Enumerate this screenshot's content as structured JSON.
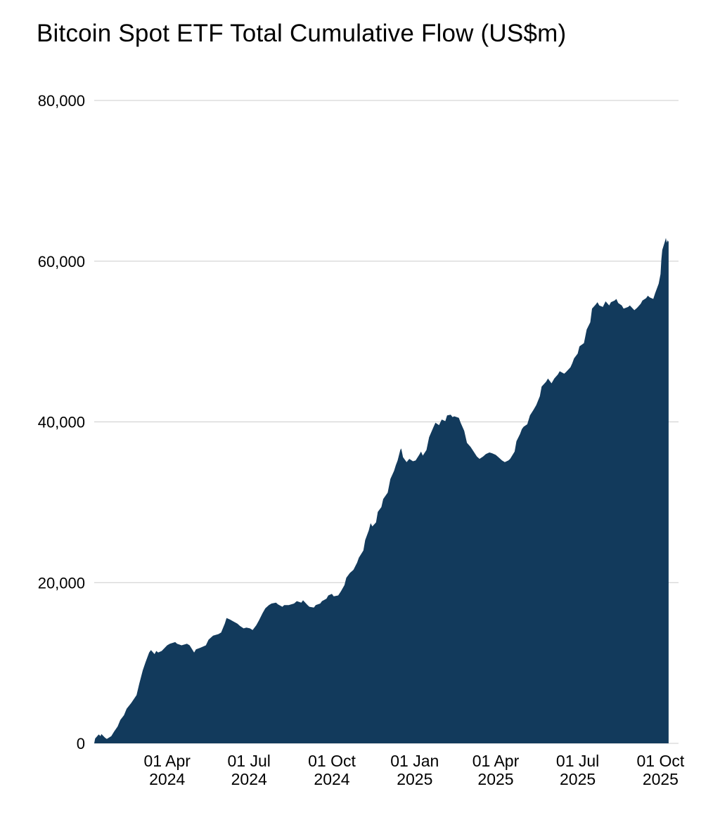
{
  "title": "Bitcoin Spot ETF Total Cumulative Flow (US$m)",
  "colors": {
    "background": "#ffffff",
    "area": "#123A5C",
    "grid": "#cccccc",
    "text": "#000000"
  },
  "chart_data": {
    "type": "area",
    "title": "Bitcoin Spot ETF Total Cumulative Flow (US$m)",
    "xlabel": "",
    "ylabel": "",
    "ylim": [
      0,
      80000
    ],
    "x_domain": [
      "2024-01-11",
      "2025-10-14"
    ],
    "grid": true,
    "legend": false,
    "area_color": "#123A5C",
    "grid_color": "#cccccc",
    "text_color": "#000000",
    "yticks": [
      {
        "value": 0,
        "label": "0"
      },
      {
        "value": 20000,
        "label": "20,000"
      },
      {
        "value": 40000,
        "label": "40,000"
      },
      {
        "value": 60000,
        "label": "60,000"
      },
      {
        "value": 80000,
        "label": "80,000"
      }
    ],
    "xticks": [
      {
        "date": "2024-04-01",
        "label": [
          "01 Apr",
          "2024"
        ]
      },
      {
        "date": "2024-07-01",
        "label": [
          "01 Jul",
          "2024"
        ]
      },
      {
        "date": "2024-10-01",
        "label": [
          "01 Oct",
          "2024"
        ]
      },
      {
        "date": "2025-01-01",
        "label": [
          "01 Jan",
          "2025"
        ]
      },
      {
        "date": "2025-04-01",
        "label": [
          "01 Apr",
          "2025"
        ]
      },
      {
        "date": "2025-07-01",
        "label": [
          "01 Jul",
          "2025"
        ]
      },
      {
        "date": "2025-10-01",
        "label": [
          "01 Oct",
          "2025"
        ]
      }
    ],
    "series": [
      {
        "name": "Total Cumulative Flow (US$m)",
        "points": [
          [
            "2024-01-11",
            0
          ],
          [
            "2024-01-12",
            600
          ],
          [
            "2024-01-16",
            1100
          ],
          [
            "2024-01-18",
            900
          ],
          [
            "2024-01-19",
            1150
          ],
          [
            "2024-01-23",
            700
          ],
          [
            "2024-01-25",
            550
          ],
          [
            "2024-01-30",
            900
          ],
          [
            "2024-02-02",
            1450
          ],
          [
            "2024-02-06",
            2100
          ],
          [
            "2024-02-09",
            2900
          ],
          [
            "2024-02-13",
            3500
          ],
          [
            "2024-02-16",
            4300
          ],
          [
            "2024-02-21",
            5000
          ],
          [
            "2024-02-27",
            6000
          ],
          [
            "2024-03-01",
            7400
          ],
          [
            "2024-03-05",
            9100
          ],
          [
            "2024-03-08",
            10100
          ],
          [
            "2024-03-12",
            11300
          ],
          [
            "2024-03-14",
            11600
          ],
          [
            "2024-03-18",
            11100
          ],
          [
            "2024-03-20",
            11500
          ],
          [
            "2024-03-22",
            11300
          ],
          [
            "2024-03-26",
            11500
          ],
          [
            "2024-04-01",
            12200
          ],
          [
            "2024-04-04",
            12400
          ],
          [
            "2024-04-10",
            12600
          ],
          [
            "2024-04-12",
            12400
          ],
          [
            "2024-04-17",
            12200
          ],
          [
            "2024-04-23",
            12400
          ],
          [
            "2024-04-26",
            12200
          ],
          [
            "2024-05-01",
            11300
          ],
          [
            "2024-05-03",
            11700
          ],
          [
            "2024-05-08",
            11900
          ],
          [
            "2024-05-14",
            12200
          ],
          [
            "2024-05-17",
            12900
          ],
          [
            "2024-05-22",
            13400
          ],
          [
            "2024-05-28",
            13600
          ],
          [
            "2024-05-31",
            13800
          ],
          [
            "2024-06-04",
            14900
          ],
          [
            "2024-06-06",
            15600
          ],
          [
            "2024-06-10",
            15400
          ],
          [
            "2024-06-13",
            15200
          ],
          [
            "2024-06-18",
            14900
          ],
          [
            "2024-06-21",
            14600
          ],
          [
            "2024-06-25",
            14300
          ],
          [
            "2024-06-28",
            14400
          ],
          [
            "2024-07-02",
            14300
          ],
          [
            "2024-07-05",
            14100
          ],
          [
            "2024-07-09",
            14700
          ],
          [
            "2024-07-12",
            15300
          ],
          [
            "2024-07-16",
            16200
          ],
          [
            "2024-07-19",
            16800
          ],
          [
            "2024-07-23",
            17200
          ],
          [
            "2024-07-26",
            17400
          ],
          [
            "2024-07-31",
            17500
          ],
          [
            "2024-08-02",
            17300
          ],
          [
            "2024-08-07",
            17000
          ],
          [
            "2024-08-09",
            17200
          ],
          [
            "2024-08-14",
            17200
          ],
          [
            "2024-08-20",
            17400
          ],
          [
            "2024-08-23",
            17700
          ],
          [
            "2024-08-28",
            17500
          ],
          [
            "2024-08-30",
            17800
          ],
          [
            "2024-09-04",
            17200
          ],
          [
            "2024-09-06",
            17000
          ],
          [
            "2024-09-11",
            16900
          ],
          [
            "2024-09-13",
            17200
          ],
          [
            "2024-09-18",
            17400
          ],
          [
            "2024-09-20",
            17700
          ],
          [
            "2024-09-25",
            18000
          ],
          [
            "2024-09-27",
            18400
          ],
          [
            "2024-10-01",
            18600
          ],
          [
            "2024-10-03",
            18300
          ],
          [
            "2024-10-08",
            18400
          ],
          [
            "2024-10-11",
            18900
          ],
          [
            "2024-10-15",
            19700
          ],
          [
            "2024-10-17",
            20600
          ],
          [
            "2024-10-21",
            21200
          ],
          [
            "2024-10-23",
            21400
          ],
          [
            "2024-10-25",
            21600
          ],
          [
            "2024-10-29",
            22500
          ],
          [
            "2024-10-31",
            23100
          ],
          [
            "2024-11-05",
            24000
          ],
          [
            "2024-11-07",
            25300
          ],
          [
            "2024-11-11",
            26500
          ],
          [
            "2024-11-13",
            27400
          ],
          [
            "2024-11-15",
            27000
          ],
          [
            "2024-11-19",
            27500
          ],
          [
            "2024-11-21",
            28800
          ],
          [
            "2024-11-25",
            29400
          ],
          [
            "2024-11-27",
            30400
          ],
          [
            "2024-12-02",
            31200
          ],
          [
            "2024-12-05",
            32900
          ],
          [
            "2024-12-09",
            33900
          ],
          [
            "2024-12-11",
            34600
          ],
          [
            "2024-12-13",
            35200
          ],
          [
            "2024-12-16",
            36500
          ],
          [
            "2024-12-17",
            36700
          ],
          [
            "2024-12-19",
            35600
          ],
          [
            "2024-12-23",
            35000
          ],
          [
            "2024-12-26",
            35400
          ],
          [
            "2024-12-30",
            35100
          ],
          [
            "2025-01-02",
            35200
          ],
          [
            "2025-01-06",
            35900
          ],
          [
            "2025-01-08",
            36300
          ],
          [
            "2025-01-10",
            35800
          ],
          [
            "2025-01-14",
            36500
          ],
          [
            "2025-01-17",
            38100
          ],
          [
            "2025-01-22",
            39400
          ],
          [
            "2025-01-24",
            39900
          ],
          [
            "2025-01-28",
            39600
          ],
          [
            "2025-01-31",
            40300
          ],
          [
            "2025-02-04",
            40100
          ],
          [
            "2025-02-06",
            40800
          ],
          [
            "2025-02-10",
            40900
          ],
          [
            "2025-02-12",
            40600
          ],
          [
            "2025-02-14",
            40700
          ],
          [
            "2025-02-19",
            40500
          ],
          [
            "2025-02-21",
            39900
          ],
          [
            "2025-02-25",
            38900
          ],
          [
            "2025-02-28",
            37400
          ],
          [
            "2025-03-04",
            36900
          ],
          [
            "2025-03-07",
            36400
          ],
          [
            "2025-03-11",
            35700
          ],
          [
            "2025-03-14",
            35400
          ],
          [
            "2025-03-18",
            35700
          ],
          [
            "2025-03-21",
            36000
          ],
          [
            "2025-03-25",
            36200
          ],
          [
            "2025-03-28",
            36100
          ],
          [
            "2025-04-01",
            35900
          ],
          [
            "2025-04-04",
            35600
          ],
          [
            "2025-04-08",
            35200
          ],
          [
            "2025-04-11",
            35000
          ],
          [
            "2025-04-15",
            35200
          ],
          [
            "2025-04-17",
            35400
          ],
          [
            "2025-04-22",
            36300
          ],
          [
            "2025-04-24",
            37600
          ],
          [
            "2025-04-28",
            38500
          ],
          [
            "2025-04-30",
            39100
          ],
          [
            "2025-05-02",
            39400
          ],
          [
            "2025-05-06",
            39700
          ],
          [
            "2025-05-09",
            40800
          ],
          [
            "2025-05-13",
            41500
          ],
          [
            "2025-05-16",
            42100
          ],
          [
            "2025-05-20",
            43200
          ],
          [
            "2025-05-22",
            44400
          ],
          [
            "2025-05-27",
            45000
          ],
          [
            "2025-05-29",
            45400
          ],
          [
            "2025-06-02",
            44800
          ],
          [
            "2025-06-05",
            45400
          ],
          [
            "2025-06-09",
            45900
          ],
          [
            "2025-06-11",
            46300
          ],
          [
            "2025-06-16",
            46000
          ],
          [
            "2025-06-18",
            46200
          ],
          [
            "2025-06-23",
            46800
          ],
          [
            "2025-06-25",
            47300
          ],
          [
            "2025-06-27",
            47900
          ],
          [
            "2025-07-01",
            48500
          ],
          [
            "2025-07-03",
            49400
          ],
          [
            "2025-07-08",
            49800
          ],
          [
            "2025-07-11",
            51500
          ],
          [
            "2025-07-15",
            52400
          ],
          [
            "2025-07-17",
            54100
          ],
          [
            "2025-07-21",
            54600
          ],
          [
            "2025-07-23",
            54900
          ],
          [
            "2025-07-25",
            54500
          ],
          [
            "2025-07-29",
            54300
          ],
          [
            "2025-08-01",
            55000
          ],
          [
            "2025-08-05",
            54500
          ],
          [
            "2025-08-07",
            54900
          ],
          [
            "2025-08-11",
            55100
          ],
          [
            "2025-08-13",
            55300
          ],
          [
            "2025-08-15",
            54800
          ],
          [
            "2025-08-19",
            54500
          ],
          [
            "2025-08-21",
            54100
          ],
          [
            "2025-08-26",
            54300
          ],
          [
            "2025-08-28",
            54500
          ],
          [
            "2025-09-02",
            53900
          ],
          [
            "2025-09-05",
            54200
          ],
          [
            "2025-09-09",
            54700
          ],
          [
            "2025-09-11",
            55100
          ],
          [
            "2025-09-15",
            55400
          ],
          [
            "2025-09-17",
            55700
          ],
          [
            "2025-09-19",
            55500
          ],
          [
            "2025-09-23",
            55300
          ],
          [
            "2025-09-25",
            56000
          ],
          [
            "2025-09-29",
            57200
          ],
          [
            "2025-10-01",
            58400
          ],
          [
            "2025-10-02",
            60200
          ],
          [
            "2025-10-03",
            61400
          ],
          [
            "2025-10-06",
            62500
          ],
          [
            "2025-10-07",
            62900
          ],
          [
            "2025-10-08",
            62300
          ],
          [
            "2025-10-09",
            62600
          ],
          [
            "2025-10-10",
            62400
          ]
        ]
      }
    ]
  }
}
